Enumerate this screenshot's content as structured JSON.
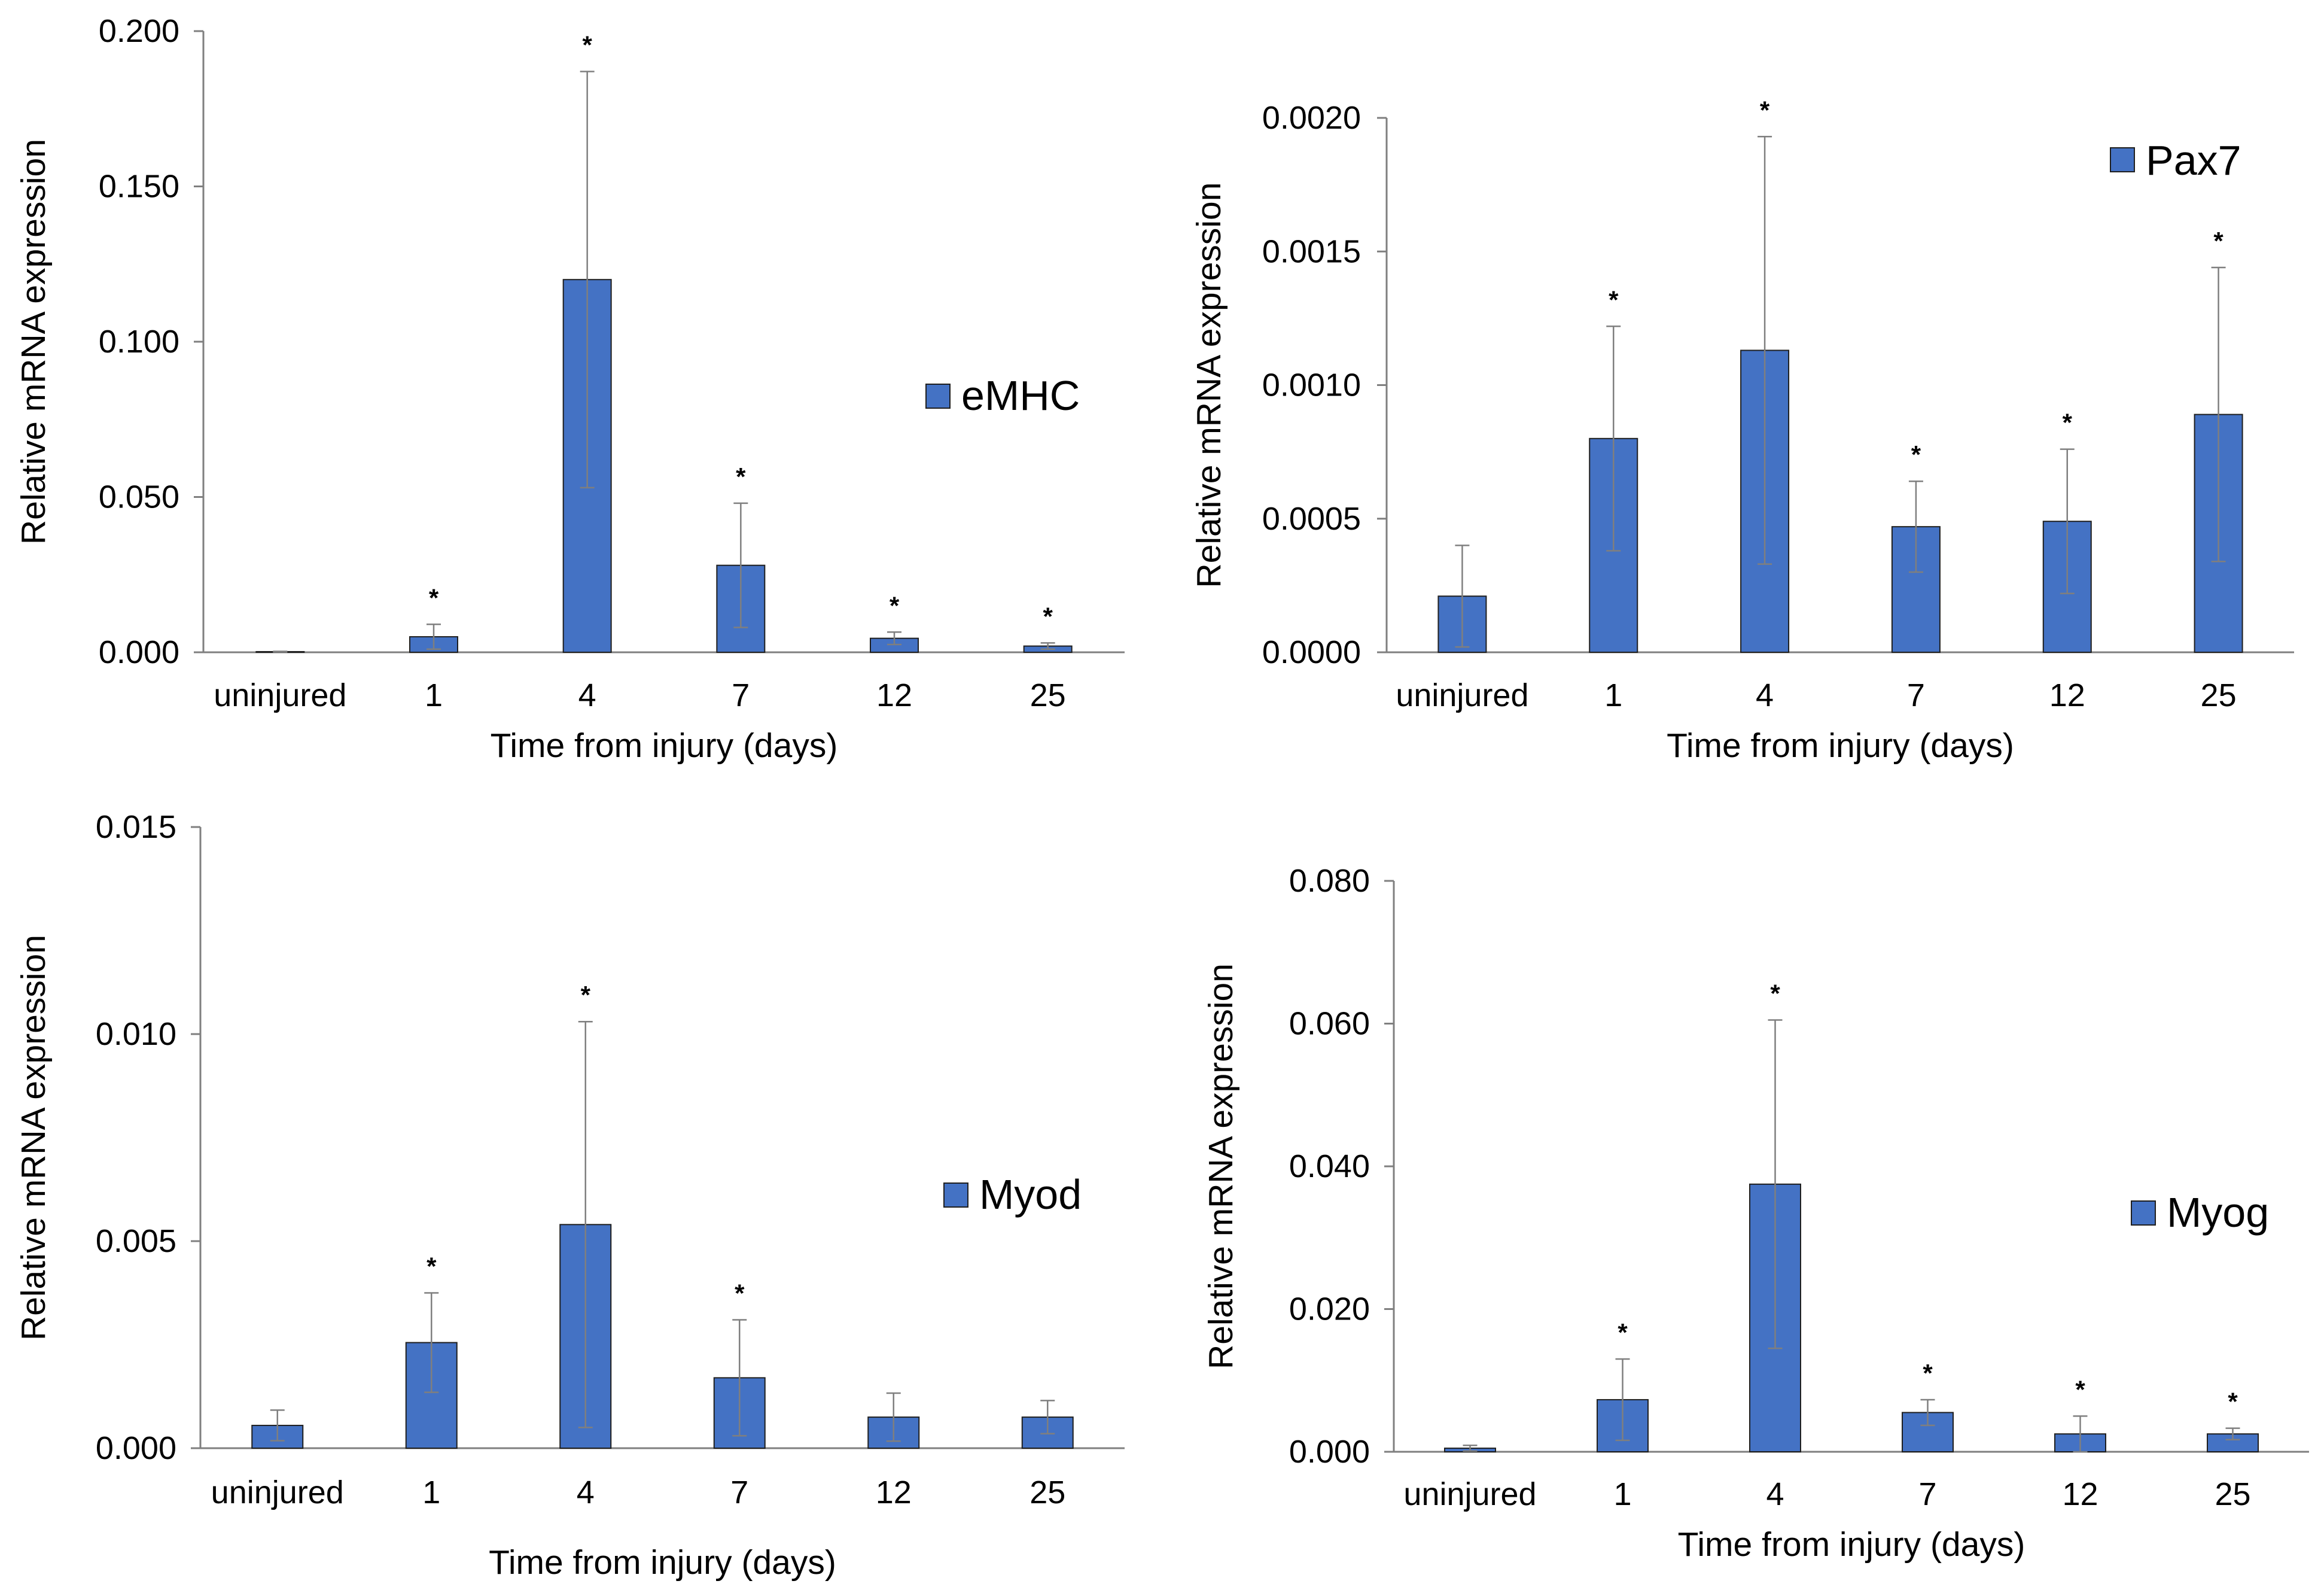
{
  "chart_data": [
    {
      "type": "bar",
      "categories": [
        "uninjured",
        "1",
        "4",
        "7",
        "12",
        "25"
      ],
      "series": [
        {
          "name": "eMHC",
          "values": [
            0.0002,
            0.005,
            0.12,
            0.028,
            0.0045,
            0.002
          ]
        }
      ],
      "error_bars": [
        0.0001,
        0.004,
        0.067,
        0.02,
        0.002,
        0.001
      ],
      "significance": [
        "",
        "*",
        "*",
        "*",
        "*",
        "*"
      ],
      "xlabel": "Time from injury (days)",
      "ylabel": "Relative mRNA expression",
      "ylim": [
        0,
        0.2
      ],
      "yticks": [
        "0.000",
        "0.050",
        "0.100",
        "0.150",
        "0.200"
      ],
      "legend_position": "right",
      "color": "#4472C4"
    },
    {
      "type": "bar",
      "categories": [
        "uninjured",
        "1",
        "4",
        "7",
        "12",
        "25"
      ],
      "series": [
        {
          "name": "Pax7",
          "values": [
            0.00021,
            0.0008,
            0.00113,
            0.00047,
            0.00049,
            0.00089
          ]
        }
      ],
      "error_bars": [
        0.00019,
        0.00042,
        0.0008,
        0.00017,
        0.00027,
        0.00055
      ],
      "significance": [
        "",
        "*",
        "*",
        "*",
        "*",
        "*"
      ],
      "xlabel": "Time from injury (days)",
      "ylabel": "Relative mRNA expression",
      "ylim": [
        0,
        0.002
      ],
      "yticks": [
        "0.0000",
        "0.0005",
        "0.0010",
        "0.0015",
        "0.0020"
      ],
      "legend_position": "top-right",
      "color": "#4472C4"
    },
    {
      "type": "bar",
      "categories": [
        "uninjured",
        "1",
        "4",
        "7",
        "12",
        "25"
      ],
      "series": [
        {
          "name": "Myod",
          "values": [
            0.00055,
            0.00255,
            0.0054,
            0.0017,
            0.00075,
            0.00075
          ]
        }
      ],
      "error_bars": [
        0.00037,
        0.0012,
        0.0049,
        0.0014,
        0.00058,
        0.0004
      ],
      "significance": [
        "",
        "*",
        "*",
        "*",
        "",
        ""
      ],
      "xlabel": "Time from injury (days)",
      "ylabel": "Relative mRNA expression",
      "ylim": [
        0,
        0.015
      ],
      "yticks": [
        "0.000",
        "0.005",
        "0.010",
        "0.015"
      ],
      "legend_position": "right",
      "color": "#4472C4"
    },
    {
      "type": "bar",
      "categories": [
        "uninjured",
        "1",
        "4",
        "7",
        "12",
        "25"
      ],
      "series": [
        {
          "name": "Myog",
          "values": [
            0.0005,
            0.0073,
            0.0375,
            0.0055,
            0.0025,
            0.0025
          ]
        }
      ],
      "error_bars": [
        0.0004,
        0.0057,
        0.023,
        0.0018,
        0.0025,
        0.0008
      ],
      "significance": [
        "",
        "*",
        "*",
        "*",
        "*",
        "*"
      ],
      "xlabel": "Time from injury (days)",
      "ylabel": "Relative mRNA expression",
      "ylim": [
        0,
        0.08
      ],
      "yticks": [
        "0.000",
        "0.020",
        "0.040",
        "0.060",
        "0.080"
      ],
      "legend_position": "right",
      "color": "#4472C4"
    }
  ]
}
